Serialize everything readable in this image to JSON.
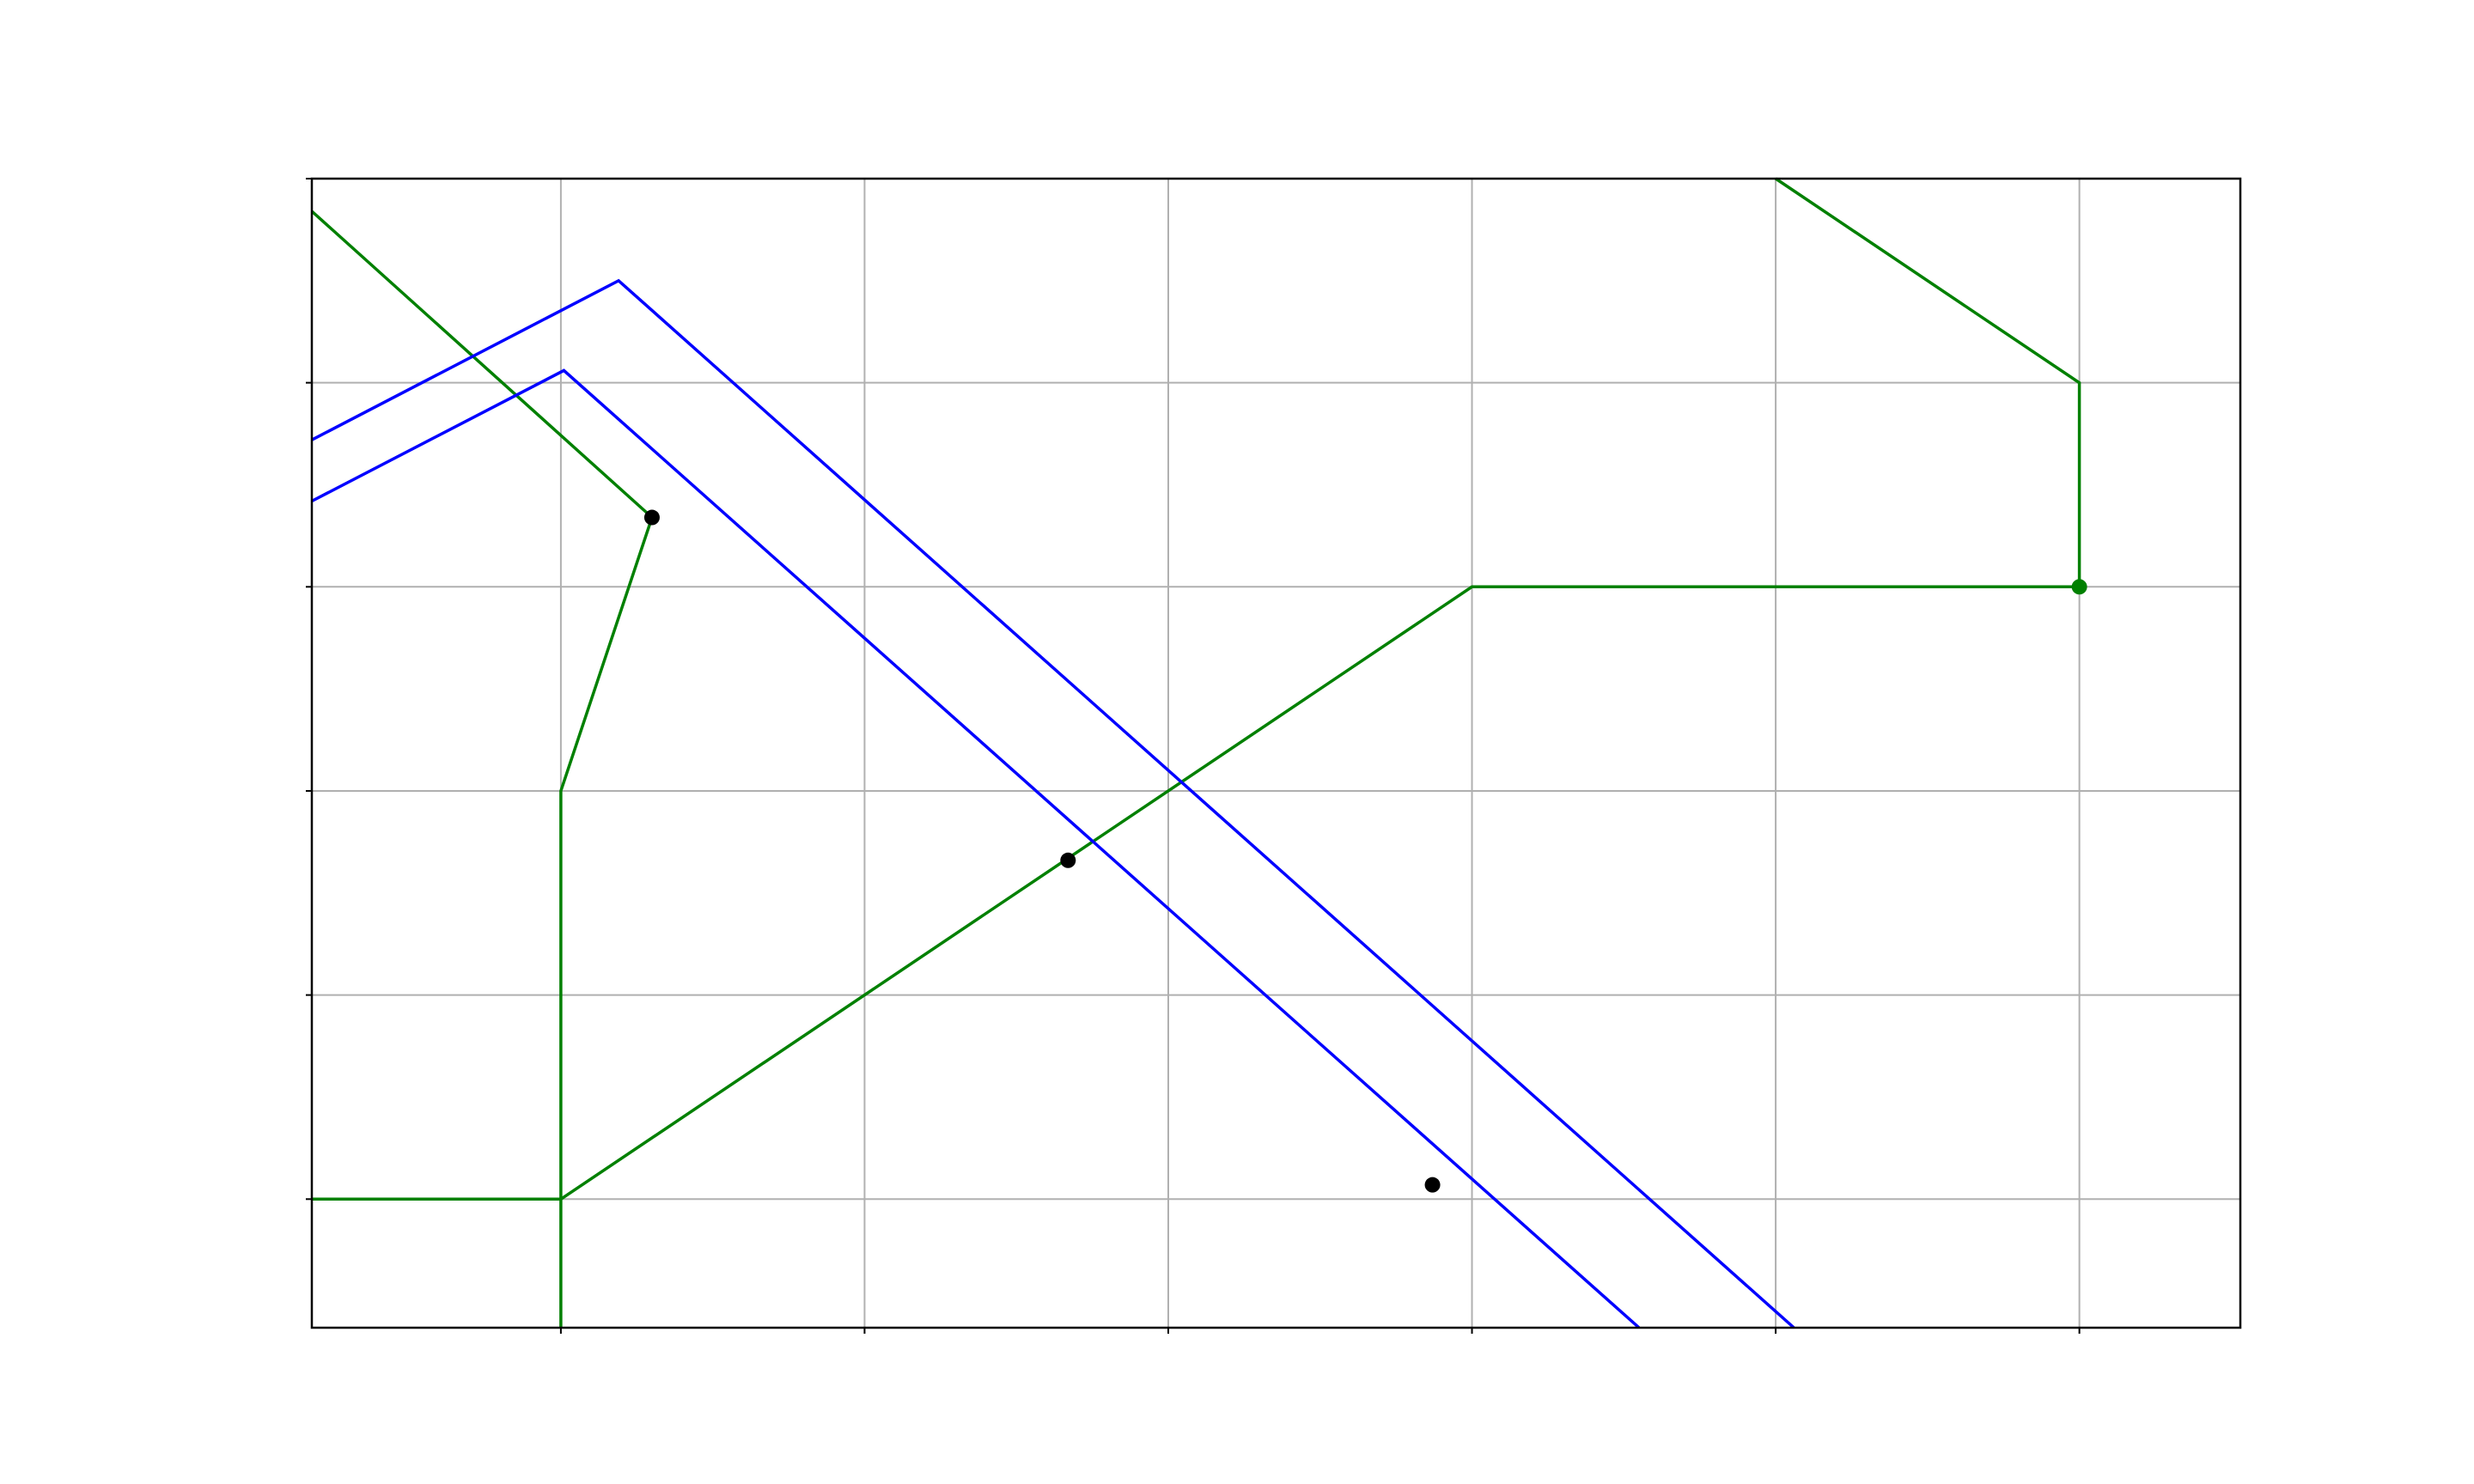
{
  "chart_data": {
    "type": "line",
    "title": "",
    "xlabel": "",
    "ylabel": "",
    "xlim": [
      0,
      6.35
    ],
    "ylim": [
      0,
      5.63
    ],
    "xticks": [
      0.82,
      1.82,
      2.82,
      3.82,
      4.82,
      5.82
    ],
    "yticks": [
      0.63,
      1.63,
      2.63,
      3.63,
      4.63,
      5.63
    ],
    "tick_labels_visible": false,
    "grid": true,
    "legend": "none",
    "colors": {
      "green": "#008000",
      "blue": "#0000ff",
      "points": "#000000",
      "grid": "#b0b0b0"
    },
    "series": [
      {
        "color": "#008000",
        "x": [
          0,
          0.82,
          3.82,
          5.82
        ],
        "y": [
          0.63,
          0.63,
          3.63,
          3.63
        ]
      },
      {
        "color": "#008000",
        "x": [
          0.82,
          0.82,
          1.12,
          0
        ],
        "y": [
          0,
          2.63,
          3.97,
          5.47
        ]
      },
      {
        "color": "#008000",
        "x": [
          4.82,
          5.82,
          5.82
        ],
        "y": [
          5.63,
          4.63,
          3.63
        ]
      },
      {
        "color": "#0000ff",
        "x": [
          0,
          1.01,
          4.88
        ],
        "y": [
          4.35,
          5.13,
          0
        ]
      },
      {
        "color": "#0000ff",
        "x": [
          0,
          0.83,
          4.37
        ],
        "y": [
          4.05,
          4.69,
          0
        ]
      }
    ],
    "points": [
      {
        "x": 1.12,
        "y": 3.97,
        "color": "#000000"
      },
      {
        "x": 2.49,
        "y": 2.29,
        "color": "#000000"
      },
      {
        "x": 3.69,
        "y": 0.7,
        "color": "#000000"
      },
      {
        "x": 5.82,
        "y": 3.63,
        "color": "#008000"
      }
    ]
  }
}
